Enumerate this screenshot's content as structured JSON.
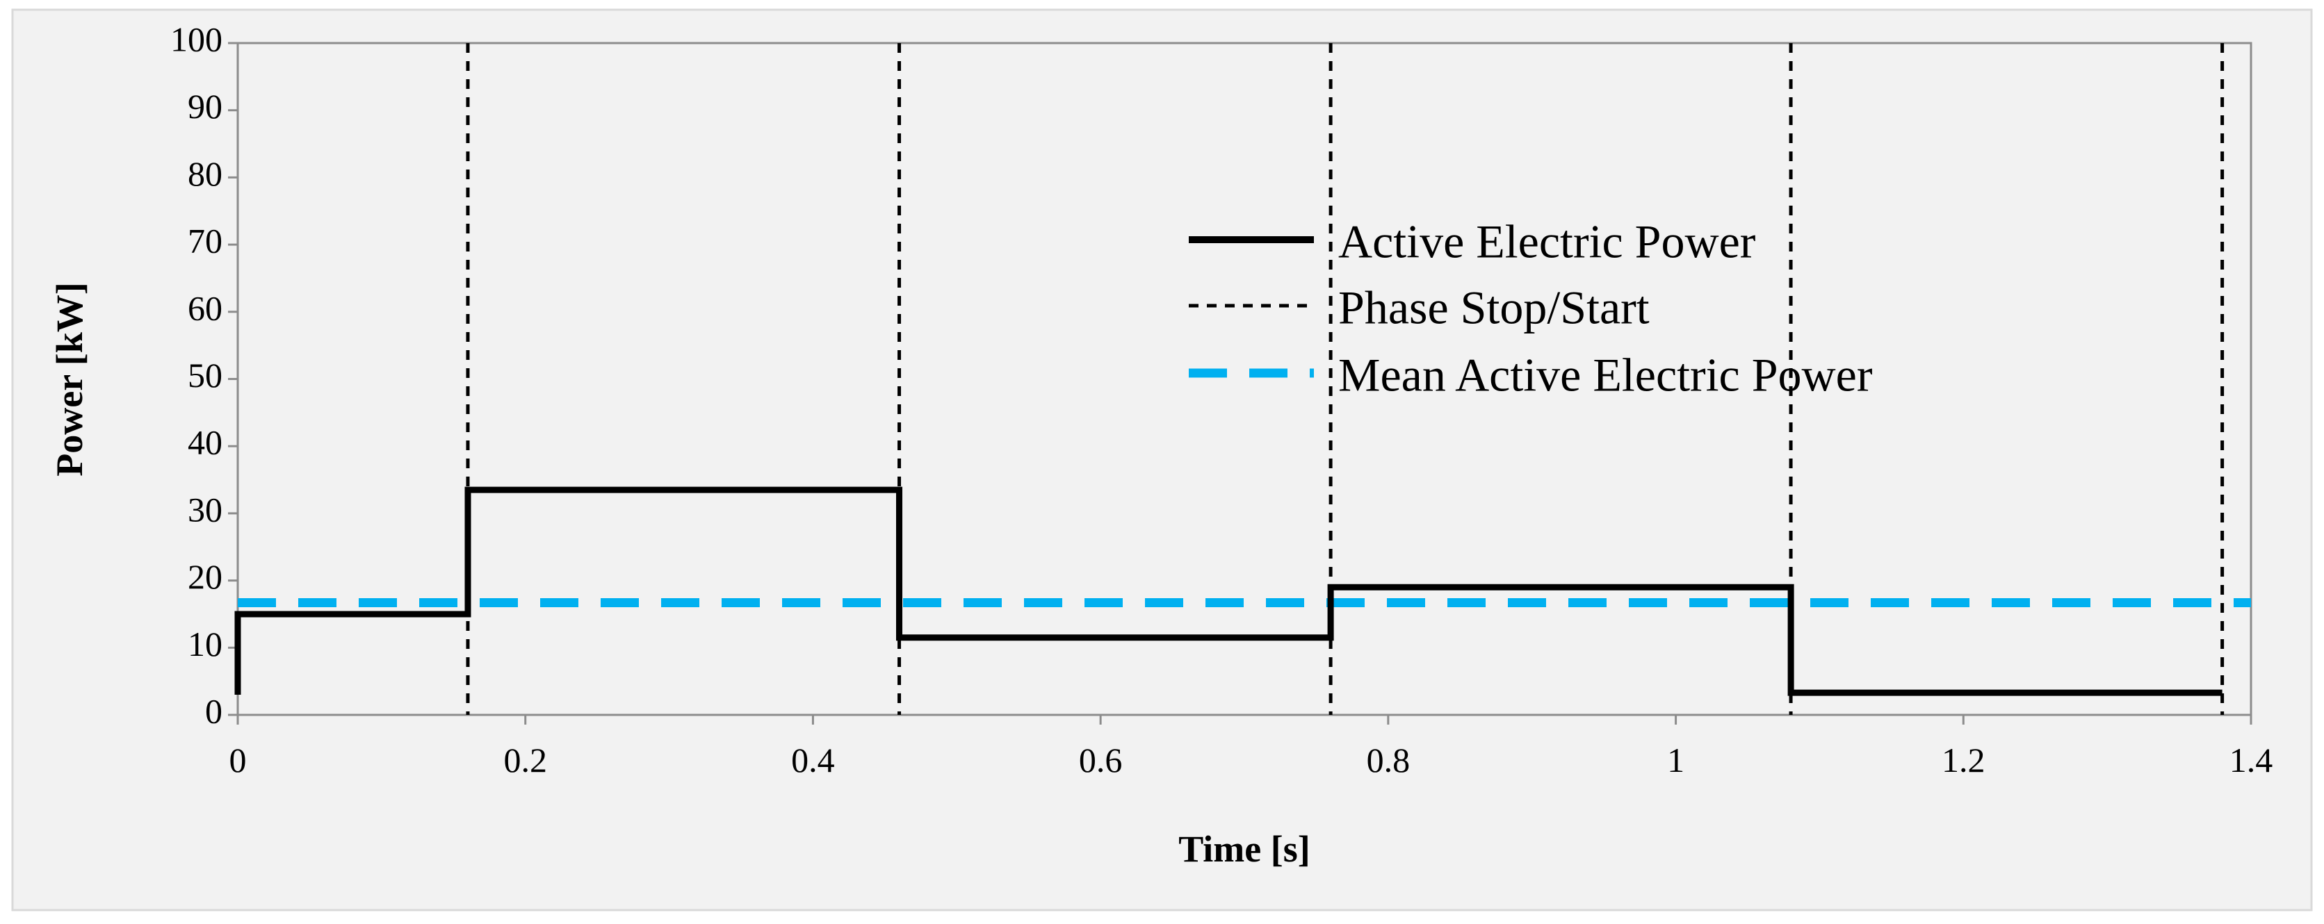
{
  "chart_data": {
    "type": "line",
    "title": "",
    "xlabel": "Time [s]",
    "ylabel": "Power [kW]",
    "xlim": [
      0,
      1.4
    ],
    "ylim": [
      0,
      100
    ],
    "x_ticks": [
      0,
      0.2,
      0.4,
      0.6,
      0.8,
      1,
      1.2,
      1.4
    ],
    "x_tick_labels": [
      "0",
      "0.2",
      "0.4",
      "0.6",
      "0.8",
      "1",
      "1.2",
      "1.4"
    ],
    "y_ticks": [
      0,
      10,
      20,
      30,
      40,
      50,
      60,
      70,
      80,
      90,
      100
    ],
    "y_tick_labels": [
      "0",
      "10",
      "20",
      "30",
      "40",
      "50",
      "60",
      "70",
      "80",
      "90",
      "100"
    ],
    "grid": false,
    "legend_position": "top-right",
    "series": [
      {
        "name": "Active Electric Power",
        "style": "solid",
        "color": "#000000",
        "x": [
          0,
          0,
          0.16,
          0.16,
          0.46,
          0.46,
          0.76,
          0.76,
          1.08,
          1.08,
          1.38
        ],
        "y": [
          3,
          15,
          15,
          33.5,
          33.5,
          11.5,
          11.5,
          19,
          19,
          3.3,
          3.3
        ]
      },
      {
        "name": "Phase Stop/Start",
        "style": "dotted-vertical",
        "color": "#000000",
        "x_positions": [
          0.16,
          0.46,
          0.76,
          1.08,
          1.38
        ]
      },
      {
        "name": "Mean Active Electric Power",
        "style": "dashed",
        "color": "#00B0F0",
        "y_value": 16.7,
        "x_range": [
          0,
          1.4
        ]
      }
    ]
  }
}
